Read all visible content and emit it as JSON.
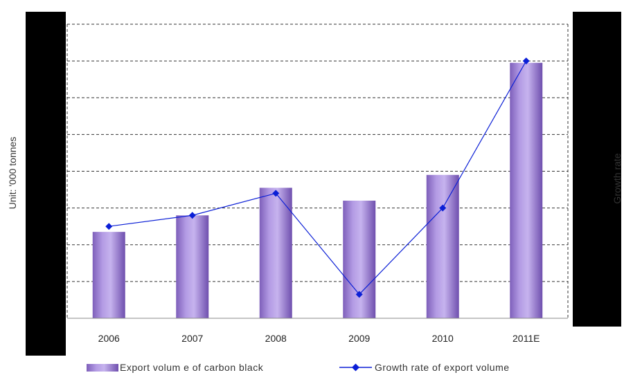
{
  "chart_data": {
    "type": "bar",
    "categories": [
      "2006",
      "2007",
      "2008",
      "2009",
      "2010",
      "2011E"
    ],
    "ylabel": "Unit: '000 tonnes",
    "y2label": "Growth rate",
    "grid": true,
    "legend_position": "bottom",
    "series": [
      {
        "name": "Export volum e of carbon black",
        "type": "bar",
        "axis": "left",
        "color": "#a58ad8",
        "values": [
          2.35,
          2.8,
          3.55,
          3.2,
          3.9,
          6.95
        ]
      },
      {
        "name": "Growth rate of export volume",
        "type": "line",
        "axis": "right",
        "color": "#0b1fd6",
        "marker": "diamond",
        "values": [
          2.5,
          2.8,
          3.4,
          0.65,
          3.0,
          7.0
        ]
      }
    ],
    "ylim": [
      0,
      8
    ],
    "y2lim": [
      0,
      8
    ]
  }
}
